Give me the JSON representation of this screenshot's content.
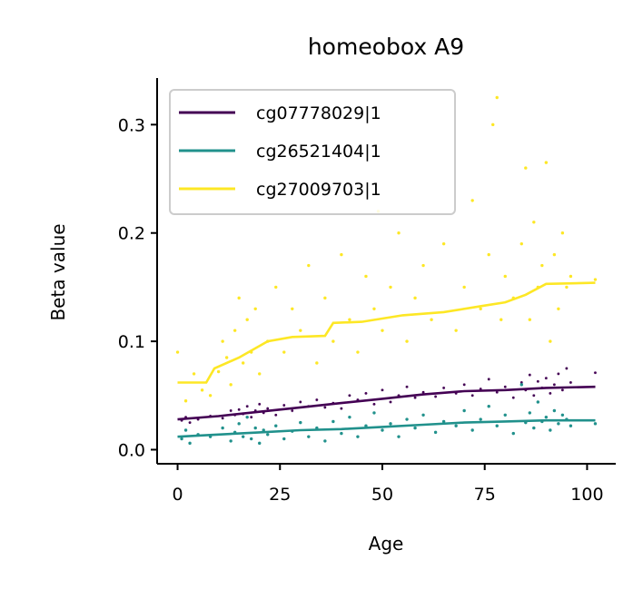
{
  "chart_data": {
    "type": "scatter",
    "title": "homeobox A9",
    "xlabel": "Age",
    "ylabel": "Beta value",
    "xlim": [
      -5,
      107
    ],
    "ylim": [
      -0.013,
      0.343
    ],
    "xticks": [
      0,
      25,
      50,
      75,
      100
    ],
    "yticks": [
      0.0,
      0.1,
      0.2,
      0.3
    ],
    "ytick_labels": [
      "0.0",
      "0.1",
      "0.2",
      "0.3"
    ],
    "grid": false,
    "legend_position": "top-left",
    "series": [
      {
        "name": "cg07778029|1",
        "color": "#440154",
        "trend": [
          [
            0,
            0.028
          ],
          [
            10,
            0.031
          ],
          [
            20,
            0.035
          ],
          [
            30,
            0.039
          ],
          [
            40,
            0.043
          ],
          [
            50,
            0.047
          ],
          [
            60,
            0.051
          ],
          [
            70,
            0.054
          ],
          [
            80,
            0.055
          ],
          [
            90,
            0.057
          ],
          [
            102,
            0.058
          ]
        ],
        "points": [
          [
            1,
            0.027
          ],
          [
            2,
            0.03
          ],
          [
            3,
            0.025
          ],
          [
            5,
            0.028
          ],
          [
            8,
            0.031
          ],
          [
            11,
            0.029
          ],
          [
            13,
            0.036
          ],
          [
            14,
            0.032
          ],
          [
            15,
            0.037
          ],
          [
            16,
            0.033
          ],
          [
            17,
            0.04
          ],
          [
            18,
            0.03
          ],
          [
            19,
            0.036
          ],
          [
            20,
            0.042
          ],
          [
            21,
            0.034
          ],
          [
            22,
            0.038
          ],
          [
            24,
            0.032
          ],
          [
            26,
            0.041
          ],
          [
            28,
            0.036
          ],
          [
            30,
            0.044
          ],
          [
            32,
            0.04
          ],
          [
            34,
            0.046
          ],
          [
            36,
            0.039
          ],
          [
            38,
            0.043
          ],
          [
            40,
            0.038
          ],
          [
            42,
            0.05
          ],
          [
            44,
            0.046
          ],
          [
            46,
            0.052
          ],
          [
            48,
            0.042
          ],
          [
            50,
            0.055
          ],
          [
            52,
            0.044
          ],
          [
            54,
            0.05
          ],
          [
            56,
            0.058
          ],
          [
            58,
            0.048
          ],
          [
            60,
            0.053
          ],
          [
            63,
            0.049
          ],
          [
            65,
            0.057
          ],
          [
            68,
            0.052
          ],
          [
            70,
            0.06
          ],
          [
            72,
            0.05
          ],
          [
            74,
            0.056
          ],
          [
            76,
            0.065
          ],
          [
            78,
            0.053
          ],
          [
            80,
            0.058
          ],
          [
            82,
            0.048
          ],
          [
            84,
            0.062
          ],
          [
            85,
            0.055
          ],
          [
            86,
            0.069
          ],
          [
            87,
            0.05
          ],
          [
            88,
            0.063
          ],
          [
            89,
            0.057
          ],
          [
            90,
            0.066
          ],
          [
            91,
            0.052
          ],
          [
            92,
            0.06
          ],
          [
            93,
            0.07
          ],
          [
            94,
            0.055
          ],
          [
            95,
            0.075
          ],
          [
            96,
            0.062
          ],
          [
            102,
            0.071
          ]
        ]
      },
      {
        "name": "cg26521404|1",
        "color": "#21918c",
        "trend": [
          [
            0,
            0.012
          ],
          [
            10,
            0.014
          ],
          [
            20,
            0.016
          ],
          [
            30,
            0.018
          ],
          [
            40,
            0.019
          ],
          [
            50,
            0.021
          ],
          [
            60,
            0.023
          ],
          [
            70,
            0.025
          ],
          [
            80,
            0.026
          ],
          [
            90,
            0.027
          ],
          [
            102,
            0.027
          ]
        ],
        "points": [
          [
            1,
            0.01
          ],
          [
            2,
            0.018
          ],
          [
            3,
            0.006
          ],
          [
            5,
            0.014
          ],
          [
            8,
            0.012
          ],
          [
            11,
            0.02
          ],
          [
            13,
            0.008
          ],
          [
            14,
            0.016
          ],
          [
            15,
            0.024
          ],
          [
            16,
            0.012
          ],
          [
            17,
            0.03
          ],
          [
            18,
            0.01
          ],
          [
            19,
            0.02
          ],
          [
            20,
            0.006
          ],
          [
            21,
            0.018
          ],
          [
            22,
            0.014
          ],
          [
            24,
            0.022
          ],
          [
            26,
            0.01
          ],
          [
            28,
            0.017
          ],
          [
            30,
            0.025
          ],
          [
            32,
            0.012
          ],
          [
            34,
            0.02
          ],
          [
            36,
            0.008
          ],
          [
            38,
            0.026
          ],
          [
            40,
            0.015
          ],
          [
            42,
            0.03
          ],
          [
            44,
            0.012
          ],
          [
            46,
            0.022
          ],
          [
            48,
            0.034
          ],
          [
            50,
            0.018
          ],
          [
            52,
            0.024
          ],
          [
            54,
            0.012
          ],
          [
            56,
            0.028
          ],
          [
            58,
            0.02
          ],
          [
            60,
            0.032
          ],
          [
            63,
            0.016
          ],
          [
            65,
            0.026
          ],
          [
            68,
            0.022
          ],
          [
            70,
            0.036
          ],
          [
            72,
            0.018
          ],
          [
            74,
            0.028
          ],
          [
            76,
            0.04
          ],
          [
            78,
            0.022
          ],
          [
            80,
            0.032
          ],
          [
            82,
            0.015
          ],
          [
            84,
            0.06
          ],
          [
            85,
            0.025
          ],
          [
            86,
            0.034
          ],
          [
            87,
            0.02
          ],
          [
            88,
            0.044
          ],
          [
            89,
            0.026
          ],
          [
            90,
            0.03
          ],
          [
            91,
            0.018
          ],
          [
            92,
            0.036
          ],
          [
            93,
            0.024
          ],
          [
            94,
            0.032
          ],
          [
            95,
            0.028
          ],
          [
            96,
            0.022
          ],
          [
            102,
            0.024
          ]
        ]
      },
      {
        "name": "cg27009703|1",
        "color": "#fde725",
        "trend": [
          [
            0,
            0.062
          ],
          [
            7,
            0.062
          ],
          [
            9,
            0.075
          ],
          [
            15,
            0.085
          ],
          [
            22,
            0.1
          ],
          [
            28,
            0.104
          ],
          [
            36,
            0.105
          ],
          [
            38,
            0.117
          ],
          [
            45,
            0.118
          ],
          [
            55,
            0.124
          ],
          [
            65,
            0.127
          ],
          [
            75,
            0.133
          ],
          [
            80,
            0.136
          ],
          [
            85,
            0.143
          ],
          [
            90,
            0.153
          ],
          [
            102,
            0.154
          ]
        ],
        "points": [
          [
            0,
            0.09
          ],
          [
            2,
            0.045
          ],
          [
            4,
            0.07
          ],
          [
            6,
            0.055
          ],
          [
            8,
            0.05
          ],
          [
            10,
            0.072
          ],
          [
            11,
            0.1
          ],
          [
            12,
            0.085
          ],
          [
            13,
            0.06
          ],
          [
            14,
            0.11
          ],
          [
            15,
            0.14
          ],
          [
            16,
            0.08
          ],
          [
            17,
            0.12
          ],
          [
            18,
            0.09
          ],
          [
            19,
            0.13
          ],
          [
            20,
            0.07
          ],
          [
            22,
            0.1
          ],
          [
            24,
            0.15
          ],
          [
            26,
            0.09
          ],
          [
            28,
            0.13
          ],
          [
            30,
            0.11
          ],
          [
            32,
            0.17
          ],
          [
            34,
            0.08
          ],
          [
            36,
            0.14
          ],
          [
            38,
            0.1
          ],
          [
            40,
            0.18
          ],
          [
            42,
            0.12
          ],
          [
            44,
            0.09
          ],
          [
            46,
            0.16
          ],
          [
            48,
            0.13
          ],
          [
            49,
            0.22
          ],
          [
            50,
            0.11
          ],
          [
            52,
            0.15
          ],
          [
            54,
            0.2
          ],
          [
            56,
            0.1
          ],
          [
            58,
            0.14
          ],
          [
            60,
            0.17
          ],
          [
            62,
            0.12
          ],
          [
            65,
            0.19
          ],
          [
            68,
            0.11
          ],
          [
            70,
            0.15
          ],
          [
            72,
            0.23
          ],
          [
            74,
            0.13
          ],
          [
            76,
            0.18
          ],
          [
            77,
            0.3
          ],
          [
            78,
            0.325
          ],
          [
            79,
            0.12
          ],
          [
            80,
            0.16
          ],
          [
            82,
            0.14
          ],
          [
            84,
            0.19
          ],
          [
            85,
            0.26
          ],
          [
            86,
            0.12
          ],
          [
            87,
            0.21
          ],
          [
            88,
            0.15
          ],
          [
            89,
            0.17
          ],
          [
            90,
            0.265
          ],
          [
            91,
            0.1
          ],
          [
            92,
            0.18
          ],
          [
            93,
            0.13
          ],
          [
            94,
            0.2
          ],
          [
            95,
            0.15
          ],
          [
            96,
            0.16
          ],
          [
            102,
            0.157
          ]
        ]
      }
    ]
  }
}
